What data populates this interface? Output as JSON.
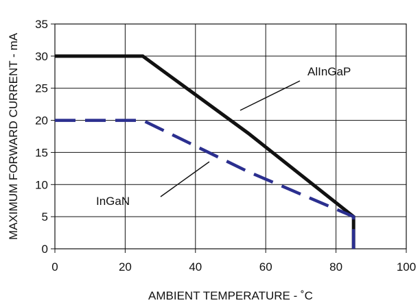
{
  "chart_data": {
    "type": "line",
    "xlabel": "AMBIENT TEMPERATURE - ˚C",
    "ylabel": "MAXIMUM FORWARD CURRENT - mA",
    "xlim": [
      0,
      100
    ],
    "ylim": [
      0,
      35
    ],
    "xticks": [
      0,
      20,
      40,
      60,
      80,
      100
    ],
    "yticks": [
      0,
      5,
      10,
      15,
      20,
      25,
      30,
      35
    ],
    "grid": true,
    "series": [
      {
        "name": "AlInGaP",
        "color": "#111111",
        "style": "solid",
        "x": [
          0,
          25,
          55,
          85,
          85
        ],
        "y": [
          30,
          30,
          18,
          5,
          0
        ]
      },
      {
        "name": "InGaN",
        "color": "#2b2f8f",
        "style": "dashed",
        "x": [
          0,
          25,
          55,
          85,
          85
        ],
        "y": [
          20,
          20,
          12,
          5,
          0
        ]
      }
    ],
    "annotations": [
      {
        "text": "AlInGaP",
        "series": "AlInGaP"
      },
      {
        "text": "InGaN",
        "series": "InGaN"
      }
    ]
  }
}
